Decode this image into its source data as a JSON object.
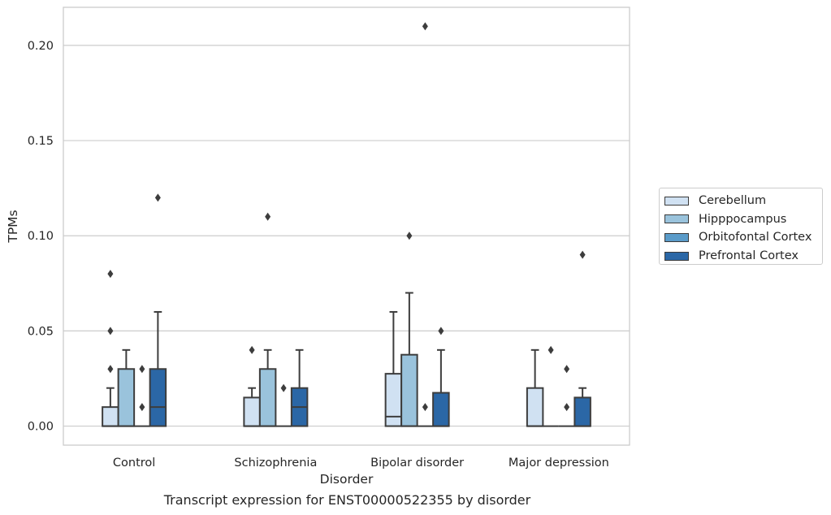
{
  "caption": "Transcript expression for ENST00000522355 by disorder",
  "chart_data": {
    "type": "box",
    "title": "",
    "xlabel": "Disorder",
    "ylabel": "TPMs",
    "ylim": [
      -0.01,
      0.22
    ],
    "yticks": [
      0.0,
      0.05,
      0.1,
      0.15,
      0.2
    ],
    "ytick_labels": [
      "0.00",
      "0.05",
      "0.10",
      "0.15",
      "0.20"
    ],
    "grid": "horizontal",
    "legend_position": "right",
    "categories": [
      "Control",
      "Schizophrenia",
      "Bipolar disorder",
      "Major depression"
    ],
    "series": [
      {
        "name": "Cerebellum",
        "color": "#d0e1f2",
        "boxes": [
          {
            "q1": 0.0,
            "median": 0.0,
            "q3": 0.01,
            "whisker_low": 0.0,
            "whisker_high": 0.02,
            "outliers": [
              0.03,
              0.05,
              0.08
            ]
          },
          {
            "q1": 0.0,
            "median": 0.0,
            "q3": 0.015,
            "whisker_low": 0.0,
            "whisker_high": 0.02,
            "outliers": [
              0.04
            ]
          },
          {
            "q1": 0.0,
            "median": 0.005,
            "q3": 0.0275,
            "whisker_low": 0.0,
            "whisker_high": 0.06,
            "outliers": []
          },
          {
            "q1": 0.0,
            "median": 0.0,
            "q3": 0.02,
            "whisker_low": 0.0,
            "whisker_high": 0.04,
            "outliers": []
          }
        ]
      },
      {
        "name": "Hipppocampus",
        "color": "#9ac3dc",
        "boxes": [
          {
            "q1": 0.0,
            "median": 0.0,
            "q3": 0.03,
            "whisker_low": 0.0,
            "whisker_high": 0.04,
            "outliers": []
          },
          {
            "q1": 0.0,
            "median": 0.0,
            "q3": 0.03,
            "whisker_low": 0.0,
            "whisker_high": 0.04,
            "outliers": [
              0.11
            ]
          },
          {
            "q1": 0.0,
            "median": 0.0,
            "q3": 0.0375,
            "whisker_low": 0.0,
            "whisker_high": 0.07,
            "outliers": [
              0.1
            ]
          },
          {
            "q1": 0.0,
            "median": 0.0,
            "q3": 0.0,
            "whisker_low": 0.0,
            "whisker_high": 0.0,
            "outliers": [
              0.04
            ]
          }
        ]
      },
      {
        "name": "Orbitofontal Cortex",
        "color": "#5a9bc9",
        "boxes": [
          {
            "q1": 0.0,
            "median": 0.0,
            "q3": 0.0,
            "whisker_low": 0.0,
            "whisker_high": 0.0,
            "outliers": [
              0.01,
              0.03
            ]
          },
          {
            "q1": 0.0,
            "median": 0.0,
            "q3": 0.0,
            "whisker_low": 0.0,
            "whisker_high": 0.0,
            "outliers": [
              0.02
            ]
          },
          {
            "q1": 0.0,
            "median": 0.0,
            "q3": 0.0,
            "whisker_low": 0.0,
            "whisker_high": 0.0,
            "outliers": [
              0.01,
              0.21
            ]
          },
          {
            "q1": 0.0,
            "median": 0.0,
            "q3": 0.0,
            "whisker_low": 0.0,
            "whisker_high": 0.0,
            "outliers": [
              0.01,
              0.03
            ]
          }
        ]
      },
      {
        "name": "Prefrontal Cortex",
        "color": "#2b67a6",
        "boxes": [
          {
            "q1": 0.0,
            "median": 0.01,
            "q3": 0.03,
            "whisker_low": 0.0,
            "whisker_high": 0.06,
            "outliers": [
              0.12
            ]
          },
          {
            "q1": 0.0,
            "median": 0.01,
            "q3": 0.02,
            "whisker_low": 0.0,
            "whisker_high": 0.04,
            "outliers": []
          },
          {
            "q1": 0.0,
            "median": 0.0,
            "q3": 0.0175,
            "whisker_low": 0.0,
            "whisker_high": 0.04,
            "outliers": [
              0.05
            ]
          },
          {
            "q1": 0.0,
            "median": 0.0,
            "q3": 0.015,
            "whisker_low": 0.0,
            "whisker_high": 0.02,
            "outliers": [
              0.09
            ]
          }
        ]
      }
    ]
  }
}
